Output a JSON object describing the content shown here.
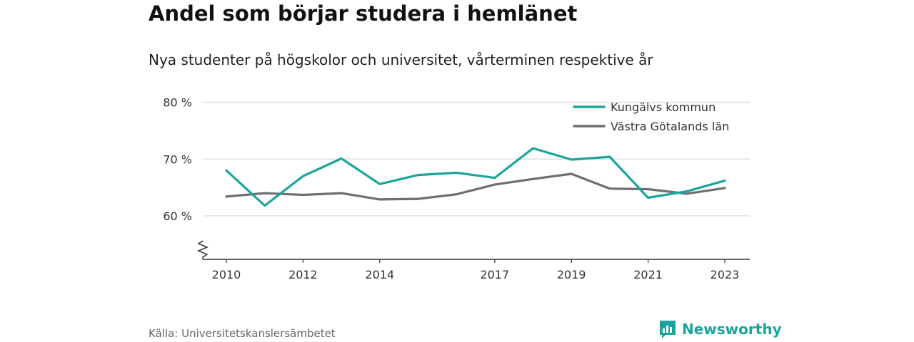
{
  "header": {
    "title": "Andel som börjar studera i hemlänet",
    "subtitle": "Nya studenter på högskolor och universitet, vårterminen respektive år"
  },
  "footer": {
    "source": "Källa: Universitetskanslersämbetet",
    "brand": "Newsworthy"
  },
  "colors": {
    "kungalv": "#1aa59c",
    "vastra_gotaland": "#6e6e73",
    "grid": "#d9d9d9",
    "axis": "#333333"
  },
  "chart_data": {
    "type": "line",
    "x": [
      2010,
      2011,
      2012,
      2013,
      2014,
      2015,
      2016,
      2017,
      2018,
      2019,
      2020,
      2021,
      2022,
      2023
    ],
    "x_tick_labels": [
      "2010",
      "2012",
      "2014",
      "2017",
      "2019",
      "2021",
      "2023"
    ],
    "y_ticks": [
      60,
      70,
      80
    ],
    "y_tick_labels": [
      "60 %",
      "70 %",
      "80 %"
    ],
    "ylim": [
      53,
      80
    ],
    "y_axis_break": true,
    "grid": true,
    "legend_position": "top-right",
    "series": [
      {
        "name": "Kungälvs kommun",
        "color": "#1aa59c",
        "values": [
          68.0,
          61.8,
          67.0,
          70.1,
          65.6,
          67.2,
          67.6,
          66.7,
          71.9,
          69.9,
          70.4,
          63.2,
          64.3,
          66.2
        ]
      },
      {
        "name": "Västra Götalands län",
        "color": "#6e6e73",
        "values": [
          63.4,
          64.0,
          63.7,
          64.0,
          62.9,
          63.0,
          63.8,
          65.5,
          66.5,
          67.4,
          64.8,
          64.7,
          63.9,
          64.9
        ]
      }
    ]
  }
}
